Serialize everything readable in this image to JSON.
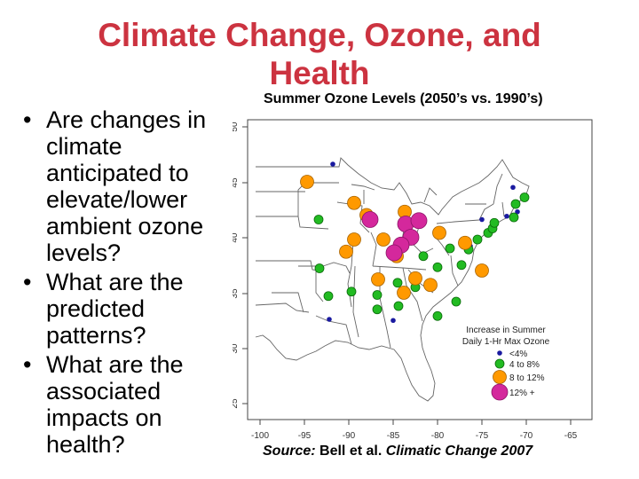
{
  "slide": {
    "title_line1": "Climate Change, Ozone, and",
    "title_line2": "Health",
    "bullets": [
      "Are changes in climate anticipated to elevate/lower ambient ozone levels?",
      "What are the predicted patterns?",
      "What are the associated impacts on health?"
    ],
    "source_label": "Source:",
    "source_authors": "Bell et al.",
    "source_journal": "Climatic Change 2007"
  },
  "map": {
    "title": "Summer Ozone Levels (2050’s vs. 1990’s)",
    "x_ticks": [
      "-100",
      "-95",
      "-90",
      "-85",
      "-80",
      "-75",
      "-70",
      "-65"
    ],
    "y_ticks": [
      "25",
      "30",
      "35",
      "40",
      "45",
      "50"
    ],
    "legend": {
      "title_line1": "Increase in Summer",
      "title_line2": "Daily 1-Hr Max Ozone",
      "items": [
        "<4%",
        "4 to 8%",
        "8 to 12%",
        "12% +"
      ]
    },
    "colors": {
      "lt4": "#1a1aa0",
      "4to8": "#22bb22",
      "8to12": "#ff9900",
      "12plus": "#d4289c",
      "border": "#666666"
    },
    "points": [
      {
        "lon": -91.8,
        "lat": 46.6,
        "class": "lt4"
      },
      {
        "lon": -71.5,
        "lat": 44.5,
        "class": "lt4"
      },
      {
        "lon": -72.2,
        "lat": 41.9,
        "class": "lt4"
      },
      {
        "lon": -71.0,
        "lat": 42.3,
        "class": "lt4"
      },
      {
        "lon": -76.3,
        "lat": 39.2,
        "class": "lt4"
      },
      {
        "lon": -75.0,
        "lat": 41.6,
        "class": "lt4"
      },
      {
        "lon": -85.0,
        "lat": 32.5,
        "class": "lt4"
      },
      {
        "lon": -92.2,
        "lat": 32.6,
        "class": "lt4"
      },
      {
        "lon": -93.4,
        "lat": 41.6,
        "class": "4to8"
      },
      {
        "lon": -93.3,
        "lat": 37.2,
        "class": "4to8"
      },
      {
        "lon": -92.3,
        "lat": 34.7,
        "class": "4to8"
      },
      {
        "lon": -89.7,
        "lat": 35.1,
        "class": "4to8"
      },
      {
        "lon": -86.8,
        "lat": 34.8,
        "class": "4to8"
      },
      {
        "lon": -86.8,
        "lat": 33.5,
        "class": "4to8"
      },
      {
        "lon": -84.4,
        "lat": 33.8,
        "class": "4to8"
      },
      {
        "lon": -84.5,
        "lat": 35.9,
        "class": "4to8"
      },
      {
        "lon": -82.5,
        "lat": 35.5,
        "class": "4to8"
      },
      {
        "lon": -81.6,
        "lat": 38.3,
        "class": "4to8"
      },
      {
        "lon": -80.0,
        "lat": 37.3,
        "class": "4to8"
      },
      {
        "lon": -80.0,
        "lat": 32.9,
        "class": "4to8"
      },
      {
        "lon": -77.9,
        "lat": 34.2,
        "class": "4to8"
      },
      {
        "lon": -77.3,
        "lat": 37.5,
        "class": "4to8"
      },
      {
        "lon": -76.5,
        "lat": 38.9,
        "class": "4to8"
      },
      {
        "lon": -75.5,
        "lat": 39.8,
        "class": "4to8"
      },
      {
        "lon": -74.3,
        "lat": 40.4,
        "class": "4to8"
      },
      {
        "lon": -73.8,
        "lat": 40.8,
        "class": "4to8"
      },
      {
        "lon": -73.6,
        "lat": 41.3,
        "class": "4to8"
      },
      {
        "lon": -71.4,
        "lat": 41.8,
        "class": "4to8"
      },
      {
        "lon": -71.2,
        "lat": 43.0,
        "class": "4to8"
      },
      {
        "lon": -70.2,
        "lat": 43.6,
        "class": "4to8"
      },
      {
        "lon": -78.6,
        "lat": 39.0,
        "class": "4to8"
      },
      {
        "lon": -94.7,
        "lat": 45.0,
        "class": "8to12"
      },
      {
        "lon": -89.4,
        "lat": 43.1,
        "class": "8to12"
      },
      {
        "lon": -88.0,
        "lat": 42.0,
        "class": "8to12"
      },
      {
        "lon": -90.3,
        "lat": 38.7,
        "class": "8to12"
      },
      {
        "lon": -89.4,
        "lat": 39.8,
        "class": "8to12"
      },
      {
        "lon": -86.1,
        "lat": 39.8,
        "class": "8to12"
      },
      {
        "lon": -84.6,
        "lat": 38.3,
        "class": "8to12"
      },
      {
        "lon": -86.7,
        "lat": 36.2,
        "class": "8to12"
      },
      {
        "lon": -83.8,
        "lat": 35.0,
        "class": "8to12"
      },
      {
        "lon": -82.5,
        "lat": 36.3,
        "class": "8to12"
      },
      {
        "lon": -80.8,
        "lat": 35.7,
        "class": "8to12"
      },
      {
        "lon": -79.8,
        "lat": 40.4,
        "class": "8to12"
      },
      {
        "lon": -76.9,
        "lat": 39.5,
        "class": "8to12"
      },
      {
        "lon": -75.0,
        "lat": 37.0,
        "class": "8to12"
      },
      {
        "lon": -83.7,
        "lat": 42.3,
        "class": "8to12"
      },
      {
        "lon": -83.6,
        "lat": 41.2,
        "class": "12plus"
      },
      {
        "lon": -82.1,
        "lat": 41.5,
        "class": "12plus"
      },
      {
        "lon": -83.0,
        "lat": 40.0,
        "class": "12plus"
      },
      {
        "lon": -84.1,
        "lat": 39.3,
        "class": "12plus"
      },
      {
        "lon": -84.9,
        "lat": 38.6,
        "class": "12plus"
      },
      {
        "lon": -87.6,
        "lat": 41.6,
        "class": "12plus"
      }
    ]
  }
}
